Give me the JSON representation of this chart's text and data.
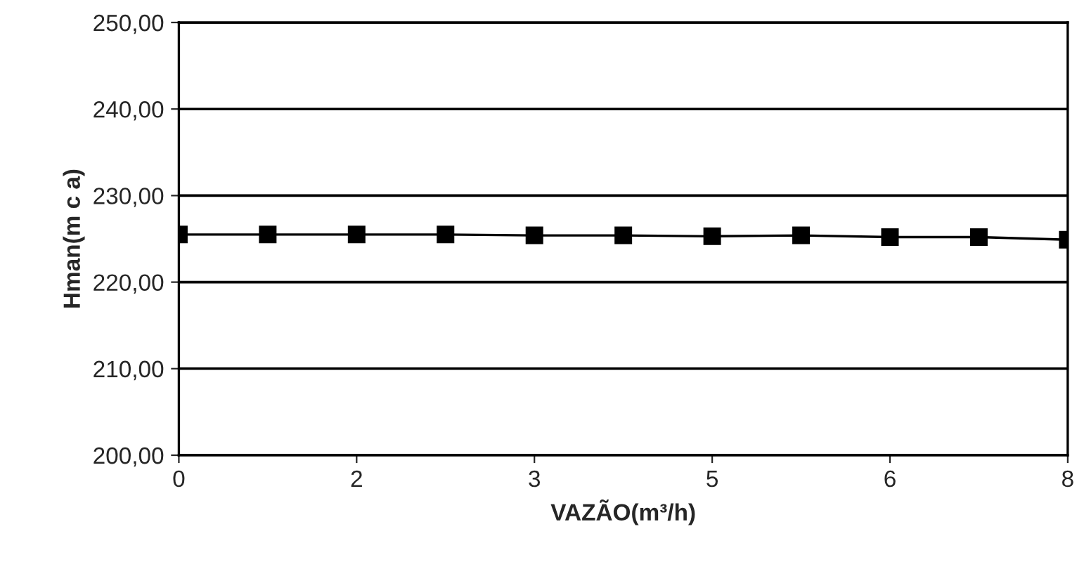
{
  "chart_data": {
    "type": "line",
    "xlabel": "VAZÃO(m³/h)",
    "ylabel": "Hman(m c a)",
    "x": [
      0,
      0.8,
      1.6,
      2.4,
      3.2,
      4,
      4.8,
      5.6,
      6.4,
      7.2,
      8
    ],
    "series": [
      {
        "color": "#000000",
        "values": [
          225.5,
          225.5,
          225.5,
          225.5,
          225.4,
          225.4,
          225.3,
          225.4,
          225.2,
          225.2,
          224.9
        ]
      }
    ],
    "xlim": [
      0,
      8
    ],
    "xticks": [
      0,
      {
        "value": 1.6,
        "label": "2"
      },
      {
        "value": 3.2,
        "label": "3"
      },
      {
        "value": 4.8,
        "label": "5"
      },
      {
        "value": 6.4,
        "label": "6"
      },
      8
    ],
    "ylim": [
      200,
      250
    ],
    "yticks": [
      {
        "value": 200,
        "label": "200,00"
      },
      {
        "value": 210,
        "label": "210,00"
      },
      {
        "value": 220,
        "label": "220,00"
      },
      {
        "value": 230,
        "label": "230,00"
      },
      {
        "value": 240,
        "label": "240,00"
      },
      {
        "value": 250,
        "label": "250,00"
      }
    ],
    "grid": "y",
    "marker": "square",
    "line_style": "solid",
    "legend": false
  }
}
